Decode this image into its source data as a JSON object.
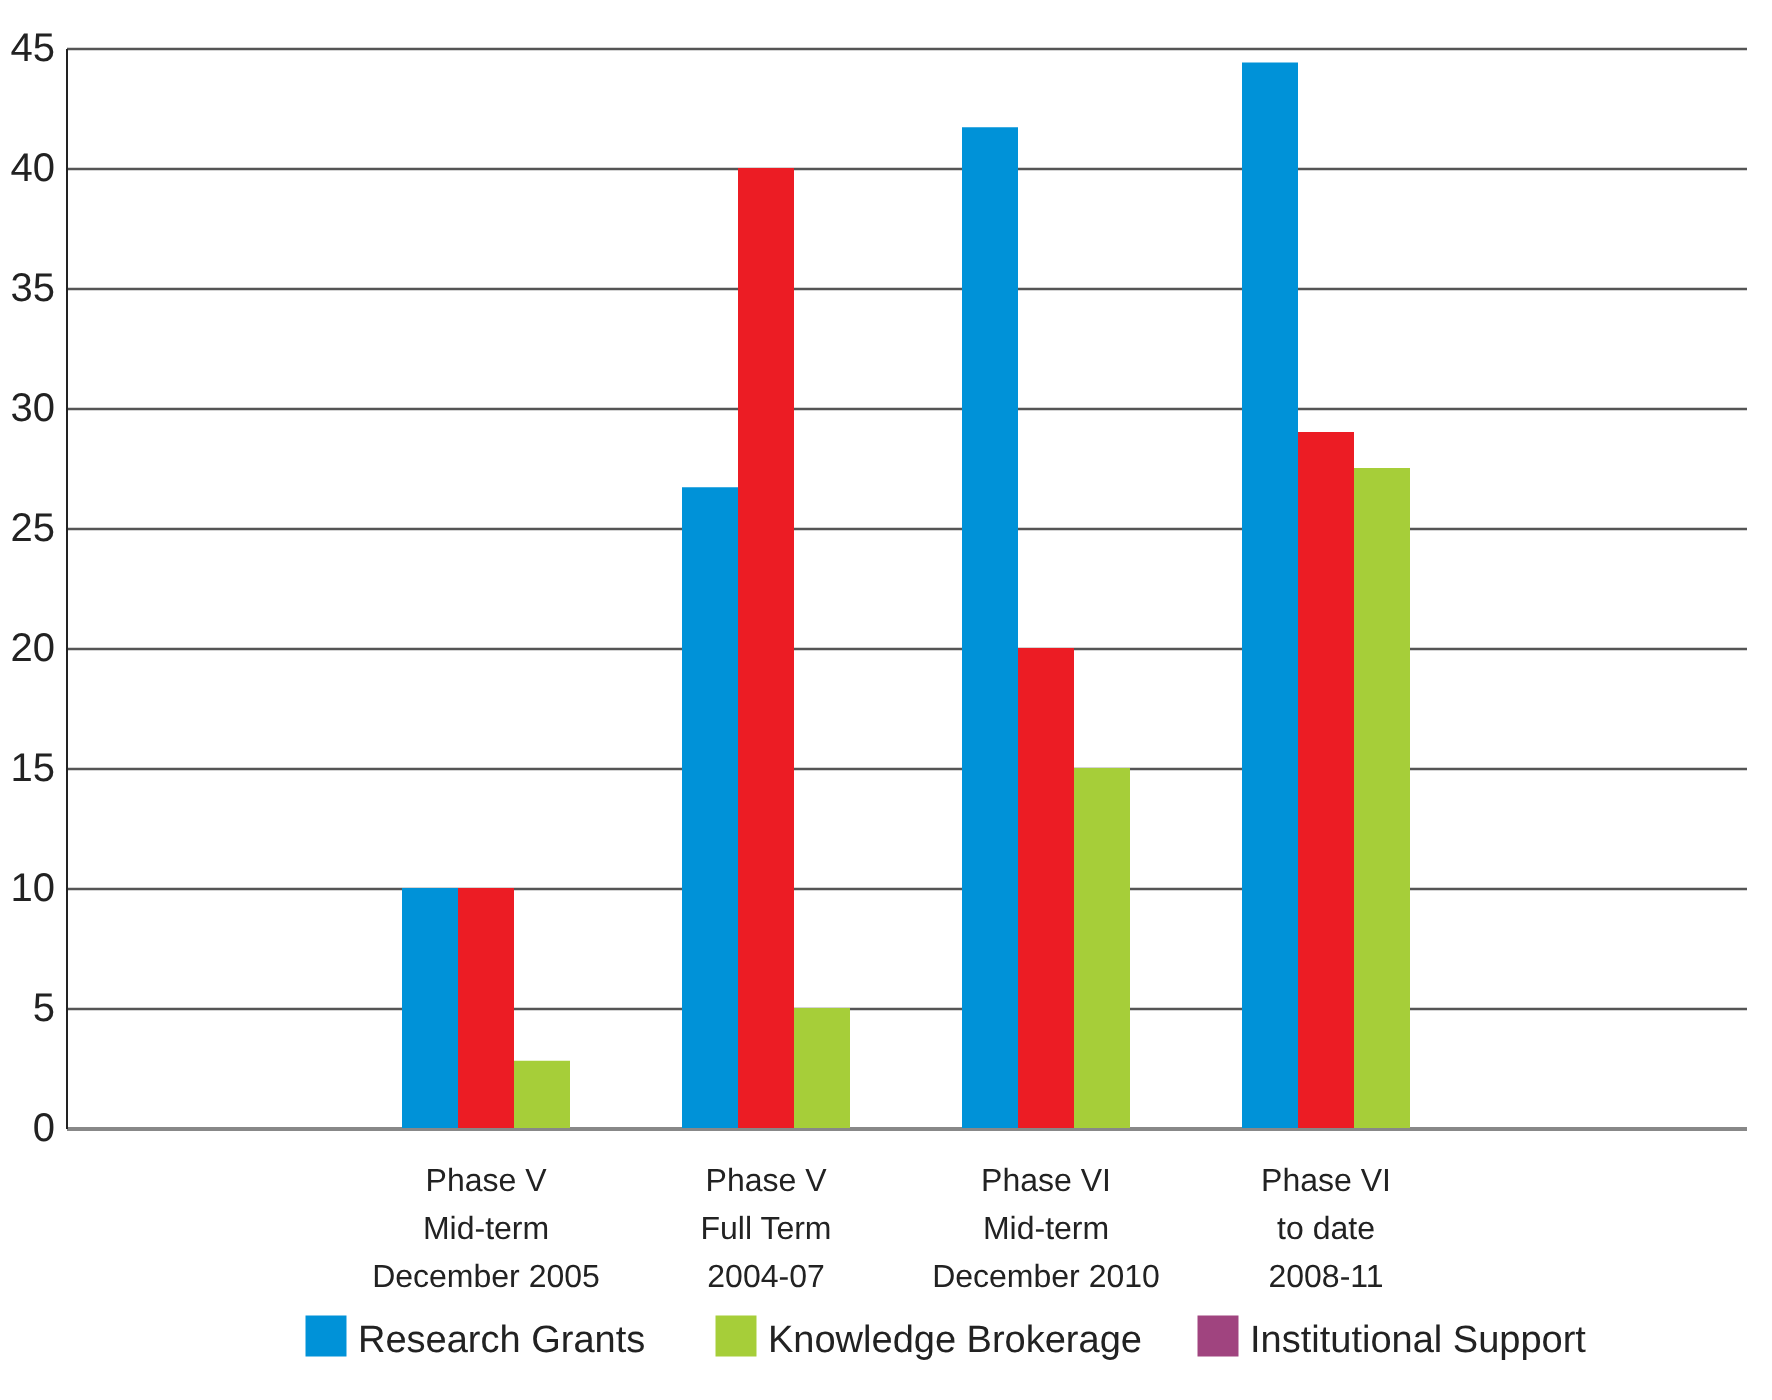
{
  "chart_data": {
    "type": "bar",
    "categories": [
      null,
      "Phase V\nMid-term\nDecember 2005",
      "Phase V\nFull Term\n2004-07",
      "Phase VI\nMid-term\nDecember 2010",
      "Phase VI\nto date\n2008-11",
      null
    ],
    "series": [
      {
        "name": "Research Grants",
        "color": "#0092d8",
        "values": [
          null,
          10,
          26.7,
          41.7,
          44.4,
          null
        ]
      },
      {
        "color": "#ec1c24",
        "values": [
          null,
          10,
          40,
          20,
          29,
          null
        ]
      },
      {
        "name": "Knowledge Brokerage",
        "color": "#a6ce39",
        "values": [
          null,
          2.8,
          5,
          15,
          27.5,
          null
        ]
      },
      {
        "name": "Institutional Support",
        "color": "#a0447f",
        "values": [
          null,
          null,
          null,
          null,
          null,
          null
        ]
      }
    ],
    "ylim": [
      0,
      45
    ],
    "yticks": [
      0,
      5,
      10,
      15,
      20,
      25,
      30,
      35,
      40,
      45
    ],
    "grid": "y",
    "legend": "bottom"
  }
}
